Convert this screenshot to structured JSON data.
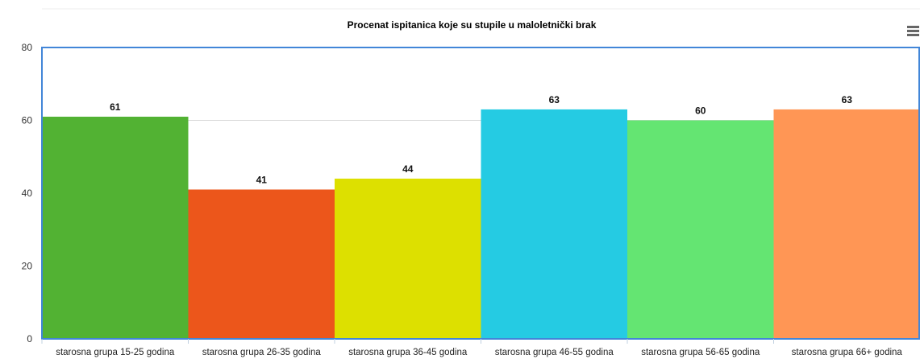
{
  "chart_data": {
    "type": "bar",
    "title": "Procenat ispitanica koje su stupile u maloletnički brak",
    "xlabel": "",
    "ylabel": "",
    "categories": [
      "starosna grupa 15-25 godina",
      "starosna grupa 26-35 godina",
      "starosna grupa 36-45 godina",
      "starosna grupa 46-55 godina",
      "starosna grupa 56-65 godina",
      "starosna grupa 66+ godina"
    ],
    "values": [
      61,
      41,
      44,
      63,
      60,
      63
    ],
    "data_labels": [
      "61",
      "41",
      "44",
      "63",
      "60",
      "63"
    ],
    "colors": [
      "#52b233",
      "#ec561b",
      "#dde000",
      "#25cbe3",
      "#64e572",
      "#ff9655"
    ],
    "ylim": [
      0,
      80
    ],
    "yticks": [
      "0",
      "20",
      "40",
      "60",
      "80"
    ],
    "grid": true,
    "legend": "none",
    "border_color": "#4286d8"
  },
  "toolbar": {
    "menu_icon": "hamburger-menu-icon"
  }
}
